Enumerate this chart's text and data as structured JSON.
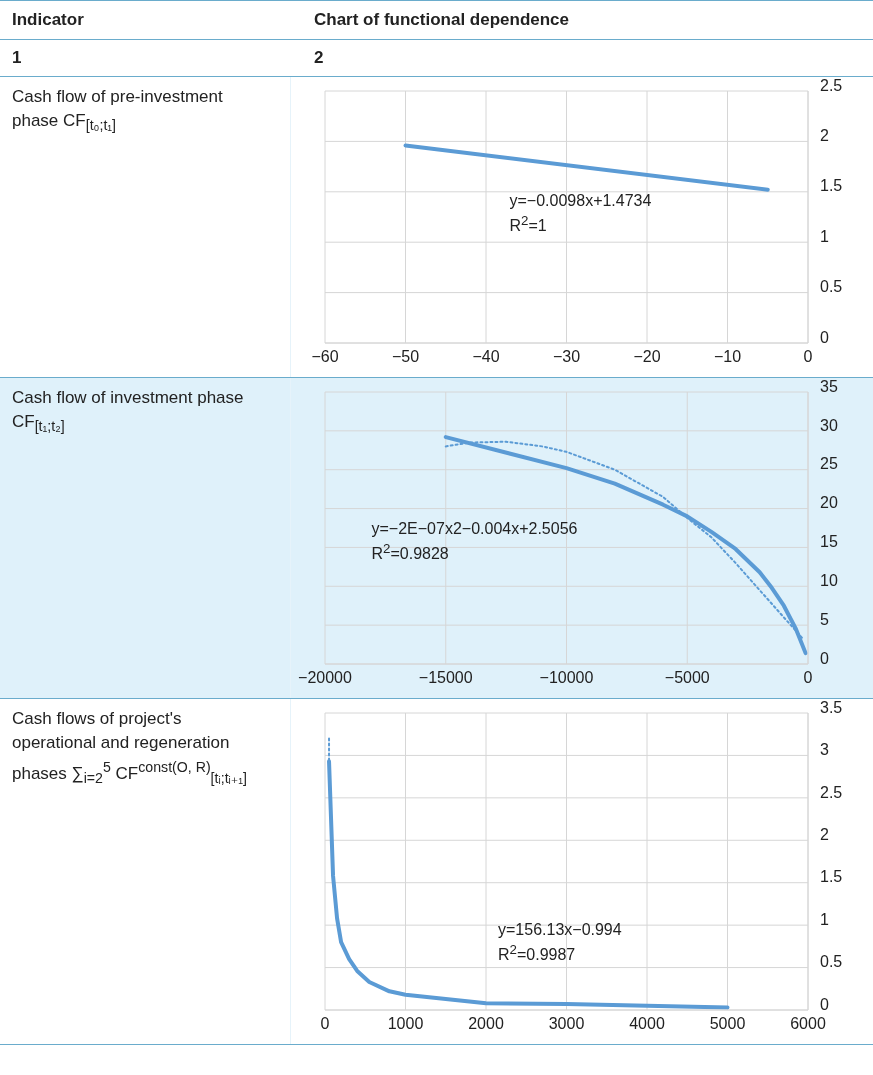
{
  "chart_data": [
    {
      "type": "line",
      "title": "Cash flow of pre-investment phase CF$_{[t₀;t₁]}$",
      "annotations": [
        "Indicator",
        "Chart of functional dependence",
        "1",
        "2",
        "y=−0.0098x+1.4734",
        "R$^{2}$=1"
      ],
      "series": [
        {
          "color": "#5b9bd5",
          "line_style": "solid",
          "x": [
            -50,
            -5
          ],
          "values": [
            1.96,
            1.52
          ]
        }
      ],
      "xlim": [
        -60,
        0
      ],
      "xticks": [
        -60,
        -50,
        -40,
        -30,
        -20,
        -10,
        0
      ],
      "ylim": [
        0,
        2.5
      ],
      "yticks": [
        0,
        0.5,
        1,
        1.5,
        2,
        2.5
      ],
      "grid": true,
      "marker": "none"
    },
    {
      "type": "line",
      "title": "Cash flow of investment phase CF$_{[t₁;t₂]}$",
      "annotations": [
        "y=−2E−07x2−0.004x+2.5056",
        "R$^{2}$=0.9828"
      ],
      "series": [
        {
          "color": "#5b9bd5",
          "line_style": "solid",
          "x": [
            -15000,
            -10000,
            -8000,
            -6000,
            -5000,
            -4000,
            -3000,
            -2000,
            -1500,
            -1000,
            -500,
            -100
          ],
          "values": [
            29.2,
            25.2,
            23.2,
            20.5,
            19,
            17,
            14.8,
            11.8,
            9.8,
            7.5,
            4.5,
            1.4
          ]
        },
        {
          "type": "line",
          "color": "#5b9bd5",
          "line_style": "dotted",
          "x": [
            -15000,
            -14000,
            -12500,
            -11000,
            -10000,
            -8000,
            -6000,
            -5000,
            -4000,
            -3000,
            -2000,
            -1000,
            -200
          ],
          "values": [
            28,
            28.5,
            28.6,
            28,
            27.3,
            25,
            21.5,
            18.8,
            16.3,
            13,
            9.5,
            6,
            3.2
          ]
        }
      ],
      "xlim": [
        -20000,
        0
      ],
      "xticks": [
        -20000,
        -15000,
        -10000,
        -5000,
        0
      ],
      "ylim": [
        0,
        35
      ],
      "yticks": [
        0,
        5,
        10,
        15,
        20,
        25,
        30,
        35
      ],
      "grid": true,
      "marker": "none"
    },
    {
      "type": "line",
      "title": "Cash flows of project's operational and regeneration phases ∑$_{i=2}$$^{5}$ CF$^{const(O, R)}$$_{[tᵢ;tᵢ₊₁]}$",
      "annotations": [
        "y=156.13x−0.994",
        "R$^{2}$=0.9987"
      ],
      "series": [
        {
          "color": "#5b9bd5",
          "line_style": "solid",
          "x": [
            50,
            100,
            150,
            200,
            300,
            400,
            550,
            800,
            1000,
            1500,
            2000,
            3000,
            4000,
            5000
          ],
          "values": [
            2.93,
            1.58,
            1.08,
            0.8,
            0.6,
            0.46,
            0.33,
            0.22,
            0.18,
            0.13,
            0.08,
            0.07,
            0.05,
            0.03
          ]
        },
        {
          "type": "line",
          "color": "#5b9bd5",
          "line_style": "dotted",
          "x": [
            50,
            50
          ],
          "values": [
            3.2,
            2.95
          ]
        }
      ],
      "xlim": [
        0,
        6000
      ],
      "xticks": [
        0,
        1000,
        2000,
        3000,
        4000,
        5000,
        6000
      ],
      "ylim": [
        0,
        3.5
      ],
      "yticks": [
        0,
        0.5,
        1,
        1.5,
        2,
        2.5,
        3,
        3.5
      ],
      "grid": true,
      "marker": "none"
    }
  ]
}
